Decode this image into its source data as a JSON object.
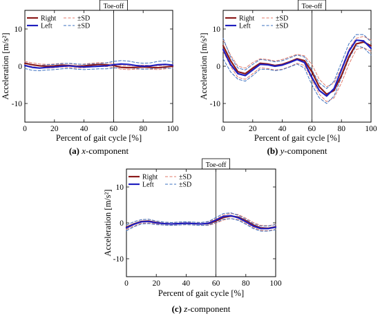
{
  "figure": {
    "captions": [
      {
        "letter": "(a)",
        "axis": "x",
        "suffix": "-component"
      },
      {
        "letter": "(b)",
        "axis": "y",
        "suffix": "-component"
      },
      {
        "letter": "(c)",
        "axis": "z",
        "suffix": "-component"
      }
    ]
  },
  "colors": {
    "right": "#8b1a1a",
    "left": "#1f1fbf",
    "right_sd": "#e07a6a",
    "left_sd": "#3a6fbf",
    "toe_off_line": "#000000"
  },
  "chart_data": [
    {
      "type": "line",
      "panel": "a",
      "xlabel": "Percent of gait cycle [%]",
      "ylabel": "Acceleration [m/s²]",
      "xlim": [
        0,
        100
      ],
      "ylim": [
        -15,
        15
      ],
      "xticks": [
        0,
        20,
        40,
        60,
        80,
        100
      ],
      "yticks": [
        10,
        0,
        -10
      ],
      "grid": false,
      "legend_position": "top-left",
      "annotation": {
        "text": "Toe-off",
        "x": 60
      },
      "x": [
        0,
        5,
        10,
        15,
        20,
        25,
        30,
        35,
        40,
        45,
        50,
        55,
        60,
        65,
        70,
        75,
        80,
        85,
        90,
        95,
        100
      ],
      "series": [
        {
          "name": "Right",
          "role": "mean",
          "side": "right",
          "values": [
            0.8,
            0.4,
            0.1,
            0.0,
            0.1,
            0.3,
            0.2,
            0.0,
            0.1,
            0.3,
            0.5,
            0.4,
            0.2,
            -0.3,
            -0.4,
            -0.3,
            -0.2,
            -0.3,
            -0.4,
            -0.2,
            0.0
          ]
        },
        {
          "name": "±SD",
          "role": "sd_upper",
          "side": "right",
          "values": [
            1.3,
            0.9,
            0.6,
            0.5,
            0.6,
            0.8,
            0.7,
            0.5,
            0.6,
            0.8,
            1.0,
            0.9,
            0.7,
            0.2,
            0.1,
            0.2,
            0.3,
            0.2,
            0.1,
            0.3,
            0.5
          ]
        },
        {
          "name": "±SD",
          "role": "sd_lower",
          "side": "right",
          "values": [
            0.3,
            -0.1,
            -0.4,
            -0.5,
            -0.4,
            -0.2,
            -0.3,
            -0.5,
            -0.4,
            -0.2,
            0.0,
            -0.1,
            -0.3,
            -0.8,
            -0.9,
            -0.8,
            -0.7,
            -0.8,
            -0.9,
            -0.7,
            -0.5
          ]
        },
        {
          "name": "Left",
          "role": "mean",
          "side": "left",
          "values": [
            0.2,
            -0.3,
            -0.5,
            -0.3,
            -0.2,
            0.0,
            0.1,
            -0.1,
            -0.2,
            -0.1,
            0.0,
            0.1,
            0.4,
            0.6,
            0.5,
            0.2,
            0.0,
            0.1,
            0.4,
            0.5,
            0.3
          ]
        },
        {
          "name": "±SD",
          "role": "sd_upper",
          "side": "left",
          "values": [
            1.0,
            0.5,
            0.2,
            0.4,
            0.5,
            0.7,
            0.8,
            0.6,
            0.5,
            0.6,
            0.7,
            0.9,
            1.3,
            1.5,
            1.4,
            1.0,
            0.8,
            0.9,
            1.3,
            1.5,
            1.2
          ]
        },
        {
          "name": "±SD",
          "role": "sd_lower",
          "side": "left",
          "values": [
            -0.6,
            -1.1,
            -1.2,
            -1.0,
            -0.9,
            -0.7,
            -0.6,
            -0.8,
            -0.9,
            -0.8,
            -0.7,
            -0.7,
            -0.5,
            -0.3,
            -0.4,
            -0.6,
            -0.8,
            -0.7,
            -0.5,
            -0.5,
            -0.6
          ]
        }
      ]
    },
    {
      "type": "line",
      "panel": "b",
      "xlabel": "Percent of gait cycle [%]",
      "ylabel": "Acceleration [m/s²]",
      "xlim": [
        0,
        100
      ],
      "ylim": [
        -15,
        15
      ],
      "xticks": [
        0,
        20,
        40,
        60,
        80,
        100
      ],
      "yticks": [
        10,
        0,
        -10
      ],
      "grid": false,
      "legend_position": "top-left",
      "annotation": {
        "text": "Toe-off",
        "x": 60
      },
      "x": [
        0,
        5,
        10,
        15,
        20,
        25,
        30,
        35,
        40,
        45,
        50,
        55,
        60,
        65,
        70,
        75,
        80,
        85,
        90,
        95,
        100
      ],
      "series": [
        {
          "name": "Right",
          "role": "mean",
          "side": "right",
          "values": [
            5.5,
            1.5,
            -1.5,
            -2.0,
            -0.5,
            0.8,
            0.6,
            0.2,
            0.5,
            1.2,
            2.0,
            1.5,
            -1.5,
            -5.5,
            -7.5,
            -6.5,
            -2.5,
            2.5,
            6.0,
            6.5,
            5.5
          ]
        },
        {
          "name": "±SD",
          "role": "sd_upper",
          "side": "right",
          "values": [
            7.0,
            3.0,
            0.0,
            -0.5,
            1.0,
            2.0,
            1.8,
            1.4,
            1.8,
            2.5,
            3.2,
            2.8,
            0.5,
            -3.5,
            -5.5,
            -4.5,
            -0.5,
            4.5,
            7.5,
            8.0,
            7.0
          ]
        },
        {
          "name": "±SD",
          "role": "sd_lower",
          "side": "right",
          "values": [
            4.0,
            0.0,
            -3.0,
            -3.5,
            -2.0,
            -0.4,
            -0.6,
            -1.0,
            -0.8,
            -0.1,
            0.8,
            0.2,
            -3.5,
            -7.5,
            -9.5,
            -8.5,
            -4.5,
            0.5,
            4.5,
            5.0,
            4.0
          ]
        },
        {
          "name": "Left",
          "role": "mean",
          "side": "left",
          "values": [
            4.5,
            0.5,
            -2.0,
            -2.5,
            -1.0,
            0.5,
            0.4,
            0.0,
            0.3,
            1.0,
            1.8,
            1.0,
            -3.0,
            -6.5,
            -8.0,
            -6.0,
            -1.0,
            4.0,
            7.0,
            6.8,
            4.8
          ]
        },
        {
          "name": "±SD",
          "role": "sd_upper",
          "side": "left",
          "values": [
            7.5,
            2.5,
            -0.5,
            -1.0,
            0.5,
            1.8,
            1.6,
            1.2,
            1.5,
            2.2,
            3.0,
            2.5,
            -1.0,
            -4.5,
            -6.0,
            -4.0,
            1.0,
            6.0,
            8.5,
            8.5,
            6.5
          ]
        },
        {
          "name": "±SD",
          "role": "sd_lower",
          "side": "left",
          "values": [
            2.0,
            -1.5,
            -3.5,
            -4.0,
            -2.5,
            -0.8,
            -0.8,
            -1.2,
            -0.9,
            -0.2,
            0.6,
            -0.5,
            -5.0,
            -8.5,
            -10.0,
            -8.0,
            -3.0,
            2.0,
            5.5,
            5.0,
            3.0
          ]
        }
      ]
    },
    {
      "type": "line",
      "panel": "c",
      "xlabel": "Percent of gait cycle [%]",
      "ylabel": "Acceleration [m/s²]",
      "xlim": [
        0,
        100
      ],
      "ylim": [
        -15,
        15
      ],
      "xticks": [
        0,
        20,
        40,
        60,
        80,
        100
      ],
      "yticks": [
        10,
        0,
        -10
      ],
      "grid": false,
      "legend_position": "top-left",
      "annotation": {
        "text": "Toe-off",
        "x": 60
      },
      "x": [
        0,
        5,
        10,
        15,
        20,
        25,
        30,
        35,
        40,
        45,
        50,
        55,
        60,
        65,
        70,
        75,
        80,
        85,
        90,
        95,
        100
      ],
      "series": [
        {
          "name": "Right",
          "role": "mean",
          "side": "right",
          "values": [
            -1.2,
            -0.3,
            0.4,
            0.5,
            0.1,
            -0.2,
            -0.3,
            -0.2,
            -0.1,
            -0.2,
            -0.3,
            -0.2,
            0.5,
            1.5,
            1.9,
            1.6,
            0.6,
            -0.6,
            -1.4,
            -1.5,
            -1.1
          ]
        },
        {
          "name": "±SD",
          "role": "sd_upper",
          "side": "right",
          "values": [
            -0.6,
            0.3,
            0.9,
            1.0,
            0.5,
            0.2,
            0.1,
            0.2,
            0.3,
            0.2,
            0.1,
            0.3,
            1.1,
            2.2,
            2.6,
            2.3,
            1.3,
            0.1,
            -0.7,
            -0.8,
            -0.4
          ]
        },
        {
          "name": "±SD",
          "role": "sd_lower",
          "side": "right",
          "values": [
            -1.8,
            -0.9,
            -0.1,
            0.0,
            -0.3,
            -0.6,
            -0.7,
            -0.6,
            -0.5,
            -0.6,
            -0.7,
            -0.7,
            -0.1,
            0.8,
            1.2,
            0.9,
            -0.1,
            -1.3,
            -2.1,
            -2.2,
            -1.8
          ]
        },
        {
          "name": "Left",
          "role": "mean",
          "side": "left",
          "values": [
            -1.4,
            -0.4,
            0.3,
            0.4,
            0.0,
            -0.2,
            -0.3,
            -0.2,
            -0.1,
            -0.2,
            -0.3,
            -0.1,
            0.8,
            1.8,
            2.0,
            1.4,
            0.3,
            -0.9,
            -1.6,
            -1.6,
            -1.2
          ]
        },
        {
          "name": "±SD",
          "role": "sd_upper",
          "side": "left",
          "values": [
            -0.6,
            0.3,
            0.9,
            1.0,
            0.5,
            0.2,
            0.1,
            0.2,
            0.3,
            0.2,
            0.1,
            0.4,
            1.5,
            2.6,
            2.8,
            2.1,
            1.0,
            -0.2,
            -0.9,
            -0.9,
            -0.5
          ]
        },
        {
          "name": "±SD",
          "role": "sd_lower",
          "side": "left",
          "values": [
            -2.2,
            -1.1,
            -0.3,
            -0.2,
            -0.5,
            -0.6,
            -0.7,
            -0.6,
            -0.5,
            -0.6,
            -0.7,
            -0.6,
            0.1,
            1.0,
            1.2,
            0.7,
            -0.4,
            -1.6,
            -2.3,
            -2.3,
            -1.9
          ]
        }
      ]
    }
  ]
}
